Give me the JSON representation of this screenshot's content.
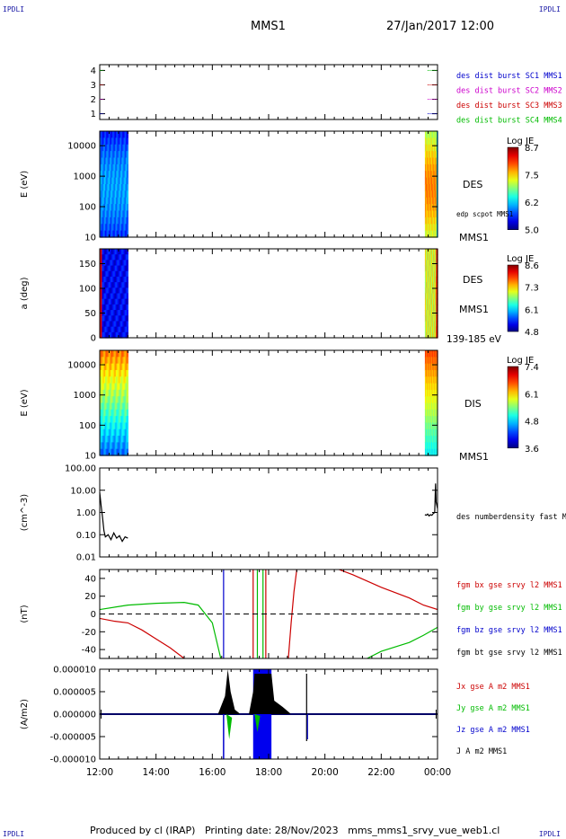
{
  "corners": {
    "tl": "IPDLI",
    "tr": "IPDLI",
    "bl": "IPDLI",
    "br": "IPDLI"
  },
  "header": {
    "mission": "MMS1",
    "datetime": "27/Jan/2017 12:00"
  },
  "footer": "Produced by cl (IRAP)   Printing date: 28/Nov/2023   mms_mms1_srvy_vue_web1.cl",
  "chart_data": [
    {
      "type": "line",
      "id": "dist-burst",
      "yticks": [
        "1",
        "2",
        "3",
        "4"
      ],
      "ylim": [
        0.6,
        4.4
      ],
      "legend": [
        {
          "label": "des dist burst SC1 MMS1",
          "color": "#0000cc",
          "y": 1
        },
        {
          "label": "des dist burst SC2 MMS2",
          "color": "#cc00cc",
          "y": 2
        },
        {
          "label": "des dist burst SC3 MMS3",
          "color": "#cc0000",
          "y": 3
        },
        {
          "label": "des dist burst SC4 MMS4",
          "color": "#00bb00",
          "y": 4
        }
      ],
      "segments_hours": [
        [
          12.0,
          12.15
        ],
        [
          23.65,
          24.0
        ]
      ]
    },
    {
      "type": "heatmap",
      "id": "des-energy",
      "ylabel": "E (eV)",
      "yticks": [
        "10",
        "100",
        "1000",
        "10000"
      ],
      "colorbar": {
        "title": "Log JE",
        "ticks": [
          "8.7",
          "7.5",
          "6.2",
          "5.0"
        ]
      },
      "labels": [
        "DES",
        "edp scpot MMS1",
        "MMS1"
      ],
      "intervals_hours": [
        [
          12.0,
          13.0
        ],
        [
          23.55,
          24.0
        ]
      ]
    },
    {
      "type": "heatmap",
      "id": "des-pitch",
      "ylabel": "a (deg)",
      "yticks": [
        "0",
        "50",
        "100",
        "150"
      ],
      "colorbar": {
        "title": "Log JE",
        "ticks": [
          "8.6",
          "7.3",
          "6.1",
          "4.8"
        ]
      },
      "labels": [
        "DES",
        "MMS1",
        "139-185 eV"
      ],
      "intervals_hours": [
        [
          12.0,
          13.0
        ],
        [
          23.55,
          24.0
        ]
      ]
    },
    {
      "type": "heatmap",
      "id": "dis-energy",
      "ylabel": "E (eV)",
      "yticks": [
        "10",
        "100",
        "1000",
        "10000"
      ],
      "colorbar": {
        "title": "Log JE",
        "ticks": [
          "7.4",
          "6.1",
          "4.8",
          "3.6"
        ]
      },
      "labels": [
        "DIS",
        "MMS1"
      ],
      "intervals_hours": [
        [
          12.0,
          13.0
        ],
        [
          23.55,
          24.0
        ]
      ]
    },
    {
      "type": "line",
      "id": "density",
      "ylabel": "(cm^-3)",
      "yticks": [
        "0.01",
        "0.10",
        "1.00",
        "10.00",
        "100.00"
      ],
      "ylim_log": [
        0.01,
        100
      ],
      "legend": [
        {
          "label": "des numberdensity fast M",
          "color": "#000000"
        }
      ],
      "series": [
        {
          "name": "des numberdensity fast M",
          "x": [
            12.0,
            12.05,
            12.1,
            12.15,
            12.2,
            12.3,
            12.4,
            12.5,
            12.6,
            12.7,
            12.8,
            12.9,
            13.0
          ],
          "y": [
            8.0,
            2.0,
            0.6,
            0.15,
            0.08,
            0.1,
            0.06,
            0.12,
            0.07,
            0.09,
            0.05,
            0.08,
            0.07
          ]
        },
        {
          "name": "des numberdensity fast M",
          "x": [
            23.55,
            23.6,
            23.65,
            23.7,
            23.75,
            23.8,
            23.85,
            23.9,
            23.93,
            23.95,
            24.0
          ],
          "y": [
            0.8,
            0.75,
            0.85,
            0.7,
            0.8,
            0.75,
            0.9,
            1.0,
            20,
            3.0,
            1.5
          ]
        }
      ]
    },
    {
      "type": "line",
      "id": "fgm-b",
      "ylabel": "(nT)",
      "yticks": [
        "-40",
        "-20",
        "0",
        "20",
        "40"
      ],
      "ylim": [
        -50,
        50
      ],
      "legend": [
        {
          "label": "fgm bx gse srvy l2 MMS1",
          "color": "#cc0000"
        },
        {
          "label": "fgm by gse srvy l2 MMS1",
          "color": "#00bb00"
        },
        {
          "label": "fgm bz gse srvy l2 MMS1",
          "color": "#0000cc"
        },
        {
          "label": "fgm bt gse srvy l2 MMS1",
          "color": "#000000"
        }
      ],
      "series": [
        {
          "name": "fgm bx gse srvy l2 MMS1",
          "x": [
            12.0,
            12.5,
            13.0,
            13.5,
            14.0,
            14.5,
            15.0
          ],
          "y": [
            -5,
            -8,
            -10,
            -18,
            -28,
            -38,
            -50
          ]
        },
        {
          "name": "fgm bx gse srvy l2 MMS1",
          "x": [
            18.7,
            18.8,
            18.9,
            19.0
          ],
          "y": [
            -50,
            -10,
            25,
            50
          ]
        },
        {
          "name": "fgm bx gse srvy l2 MMS1",
          "x": [
            20.5,
            21.0,
            22.0,
            23.0,
            23.5,
            24.0
          ],
          "y": [
            50,
            44,
            30,
            18,
            10,
            5
          ]
        },
        {
          "name": "fgm by gse srvy l2 MMS1",
          "x": [
            12.0,
            13.0,
            14.0,
            15.0,
            15.5,
            16.0,
            16.3
          ],
          "y": [
            5,
            10,
            12,
            13,
            10,
            -10,
            -50
          ]
        },
        {
          "name": "fgm by gse srvy l2 MMS1",
          "x": [
            21.5,
            22.0,
            23.0,
            23.5,
            24.0
          ],
          "y": [
            -50,
            -42,
            -32,
            -24,
            -15
          ]
        }
      ],
      "vlines": [
        {
          "x": 16.4,
          "color": "#0000cc"
        },
        {
          "x": 17.45,
          "color": "#cc0000"
        },
        {
          "x": 17.6,
          "color": "#00bb00"
        },
        {
          "x": 17.8,
          "color": "#00bb00"
        },
        {
          "x": 17.9,
          "color": "#cc0000"
        }
      ]
    },
    {
      "type": "line",
      "id": "current",
      "ylabel": "(A/m2)",
      "yticks": [
        "-0.000010",
        "-0.000005",
        "0.000000",
        "0.000005",
        "0.000010"
      ],
      "ylim": [
        -1e-05,
        1e-05
      ],
      "legend": [
        {
          "label": "Jx gse A m2 MMS1",
          "color": "#cc0000"
        },
        {
          "label": "Jy gse A m2 MMS1",
          "color": "#00bb00"
        },
        {
          "label": "Jz gse A m2 MMS1",
          "color": "#0000cc"
        },
        {
          "label": "J A m2 MMS1",
          "color": "#000000"
        }
      ],
      "xticks": [
        "12:00",
        "14:00",
        "16:00",
        "18:00",
        "20:00",
        "22:00",
        "00:00"
      ]
    }
  ]
}
